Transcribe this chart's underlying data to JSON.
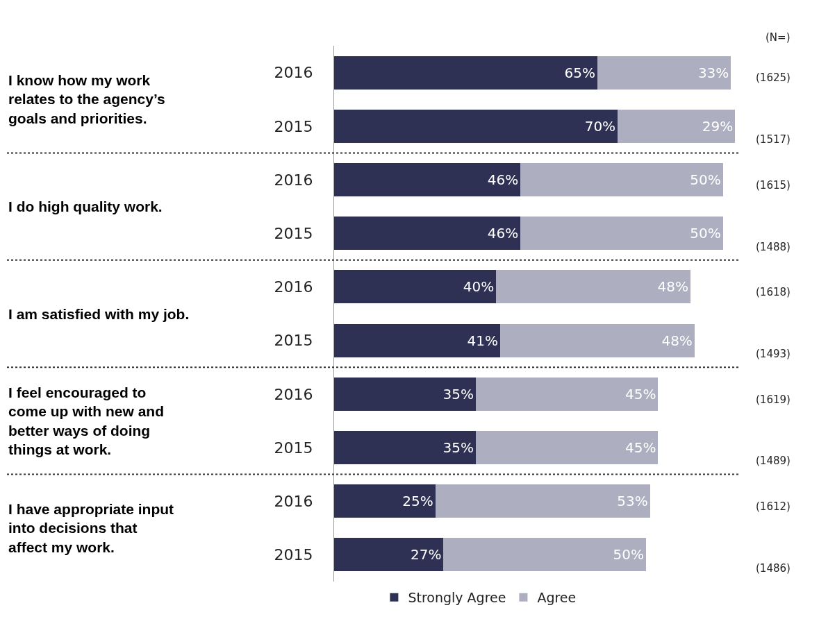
{
  "chart_data": {
    "type": "bar",
    "orientation": "horizontal",
    "stacked": true,
    "categories": [
      "2016",
      "2015",
      "2016",
      "2015",
      "2016",
      "2015",
      "2016",
      "2015",
      "2016",
      "2015"
    ],
    "series": [
      {
        "name": "Strongly Agree",
        "color": "#2e3154",
        "values": [
          65,
          70,
          46,
          46,
          40,
          41,
          35,
          35,
          25,
          27
        ],
        "value_labels": [
          "65%",
          "70%",
          "46%",
          "46%",
          "40%",
          "41%",
          "35%",
          "35%",
          "25%",
          "27%"
        ]
      },
      {
        "name": "Agree",
        "color": "#adaebf",
        "values": [
          33,
          29,
          50,
          50,
          48,
          48,
          45,
          45,
          53,
          50
        ],
        "value_labels": [
          "33%",
          "29%",
          "50%",
          "50%",
          "48%",
          "48%",
          "45%",
          "45%",
          "53%",
          "50%"
        ]
      }
    ],
    "xlim": [
      0,
      100
    ],
    "tick_labels": "y",
    "legend": "bottom",
    "annotations": [
      "(N=)",
      "I know how my work relates to the agency’s goals and priorities.",
      "I do high quality work.",
      "I am satisfied with my job.",
      "I feel encouraged to come up with new and better ways of doing things at work.",
      "I have appropriate input into decisions that affect my work.",
      "(1625)",
      "(1517)",
      "(1615)",
      "(1488)",
      "(1618)",
      "(1493)",
      "(1619)",
      "(1489)",
      "(1612)",
      "(1486)"
    ]
  }
}
